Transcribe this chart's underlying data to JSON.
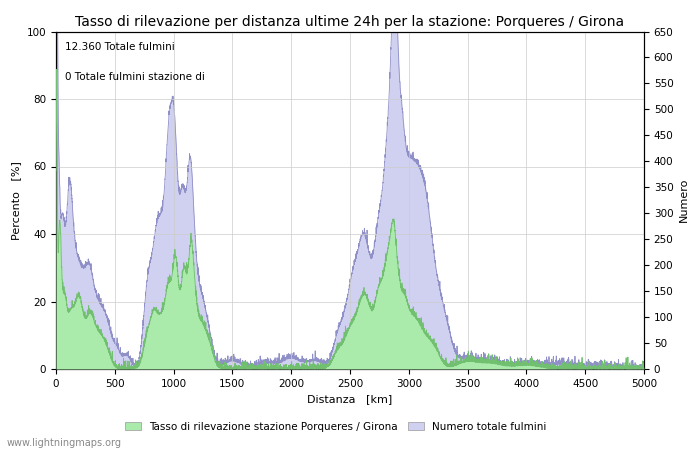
{
  "title": "Tasso di rilevazione per distanza ultime 24h per la stazione: Porqueres / Girona",
  "xlabel": "Distanza   [km]",
  "ylabel_left": "Percento   [%]",
  "ylabel_right": "Numero",
  "annotation_line1": "12.360 Totale fulmini",
  "annotation_line2": "0 Totale fulmini stazione di",
  "legend_label1": "Tasso di rilevazione stazione Porqueres / Girona",
  "legend_label2": "Numero totale fulmini",
  "watermark": "www.lightningmaps.org",
  "xlim": [
    0,
    5000
  ],
  "ylim_left": [
    0,
    100
  ],
  "ylim_right": [
    0,
    650
  ],
  "xticks": [
    0,
    500,
    1000,
    1500,
    2000,
    2500,
    3000,
    3500,
    4000,
    4500,
    5000
  ],
  "yticks_left": [
    0,
    20,
    40,
    60,
    80,
    100
  ],
  "yticks_right": [
    0,
    50,
    100,
    150,
    200,
    250,
    300,
    350,
    400,
    450,
    500,
    550,
    600,
    650
  ],
  "color_fill_green": "#aaeaaa",
  "color_fill_blue": "#d0d0f0",
  "color_line_blue": "#9090c8",
  "color_line_green": "#70c070",
  "background_color": "#ffffff",
  "grid_color": "#cccccc",
  "title_fontsize": 10,
  "axis_fontsize": 8,
  "tick_fontsize": 7.5,
  "annotation_fontsize": 7.5
}
